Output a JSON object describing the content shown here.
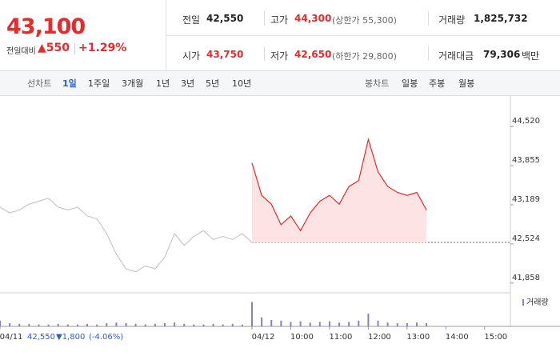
{
  "quote": {
    "price": "43,100",
    "change_label": "전일대비",
    "change": "▲550",
    "change_pct": "+1.29%",
    "fields": [
      {
        "label": "전일",
        "value": "42,550"
      },
      {
        "label": "고가",
        "value": "44,300",
        "note": "(상한가 55,300)"
      },
      {
        "label": "거래량",
        "value": "1,825,732"
      },
      {
        "label": "시가",
        "value": "43,750"
      },
      {
        "label": "저가",
        "value": "42,650",
        "note": "(하한가 29,800)"
      },
      {
        "label": "거래대금",
        "value": "79,306",
        "unit": "백만"
      }
    ]
  },
  "tabs": {
    "line_label": "선차트",
    "line": [
      "1일",
      "1주일",
      "3개월",
      "1년",
      "3년",
      "5년",
      "10년"
    ],
    "candle_label": "봉차트",
    "candle": [
      "일봉",
      "주봉",
      "월봉"
    ]
  },
  "chart_data": {
    "type": "line",
    "series": [
      {
        "color": "#c8c8c8",
        "x": [
          "09:00",
          "09:15",
          "09:30",
          "09:45",
          "10:00",
          "10:15",
          "10:30",
          "10:45",
          "11:00",
          "11:15",
          "11:30",
          "11:45",
          "12:00",
          "12:15",
          "12:30",
          "12:45",
          "13:00",
          "13:15",
          "13:30",
          "13:45",
          "14:00",
          "14:15",
          "14:30",
          "14:45",
          "15:00",
          "15:15",
          "15:30"
        ],
        "values": [
          43150,
          43050,
          43100,
          43200,
          43250,
          43300,
          43150,
          43100,
          43150,
          43000,
          42950,
          42700,
          42350,
          42100,
          42050,
          42150,
          42100,
          42300,
          42700,
          42500,
          42650,
          42750,
          42600,
          42650,
          42600,
          42700,
          42550
        ],
        "volume": [
          9000,
          5000,
          4000,
          4000,
          3000,
          3000,
          4000,
          3000,
          3000,
          4000,
          3000,
          5000,
          6000,
          5000,
          4000,
          3000,
          4000,
          5000,
          6000,
          4000,
          3000,
          3000,
          4000,
          3000,
          4000,
          3000,
          6000
        ]
      },
      {
        "color": "#e52b2b",
        "fill": "#fde3e3",
        "x": [
          "09:00",
          "09:15",
          "09:30",
          "09:45",
          "10:00",
          "10:15",
          "10:30",
          "10:45",
          "11:00",
          "11:15",
          "11:30",
          "11:45",
          "12:00",
          "12:15",
          "12:30",
          "12:45",
          "13:00",
          "13:15",
          "13:30"
        ],
        "values": [
          43900,
          43350,
          43200,
          42850,
          43000,
          42750,
          43050,
          43250,
          43350,
          43200,
          43500,
          43600,
          44300,
          43750,
          43500,
          43400,
          43350,
          43400,
          43100
        ],
        "volume": [
          38000,
          14000,
          10000,
          9000,
          7000,
          8000,
          6000,
          7000,
          8000,
          6000,
          7000,
          9000,
          20000,
          9000,
          6000,
          5000,
          5000,
          6000,
          5000
        ]
      }
    ],
    "reference": 42550,
    "ylim": [
      41720,
      44930
    ],
    "yticks": [
      {
        "value": 41858,
        "label": "41,858"
      },
      {
        "value": 42524,
        "label": "42,524"
      },
      {
        "value": 43189,
        "label": "43,189"
      },
      {
        "value": 43855,
        "label": "43,855"
      },
      {
        "value": 44520,
        "label": "44,520"
      }
    ],
    "volume_label": "거래량",
    "volume_color": "#8e7cc3",
    "volume_ylim": [
      0,
      45000
    ],
    "xticks": [
      "04/11",
      "04/12",
      "10:00",
      "11:00",
      "12:00",
      "13:00",
      "14:00",
      "15:00"
    ],
    "prev_summary": {
      "close": "42,550",
      "change": "▼1,800",
      "change_pct": "(-4.06%)"
    }
  }
}
